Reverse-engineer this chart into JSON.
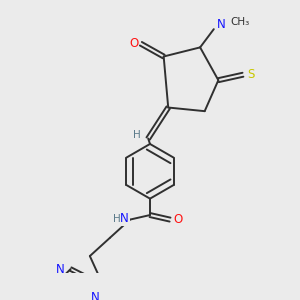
{
  "bg_color": "#ebebeb",
  "atom_colors": {
    "C": "#303030",
    "N": "#1414ff",
    "O": "#ff1414",
    "S": "#c8c800",
    "H": "#5a7a8a"
  },
  "figsize": [
    3.0,
    3.0
  ],
  "dpi": 100
}
